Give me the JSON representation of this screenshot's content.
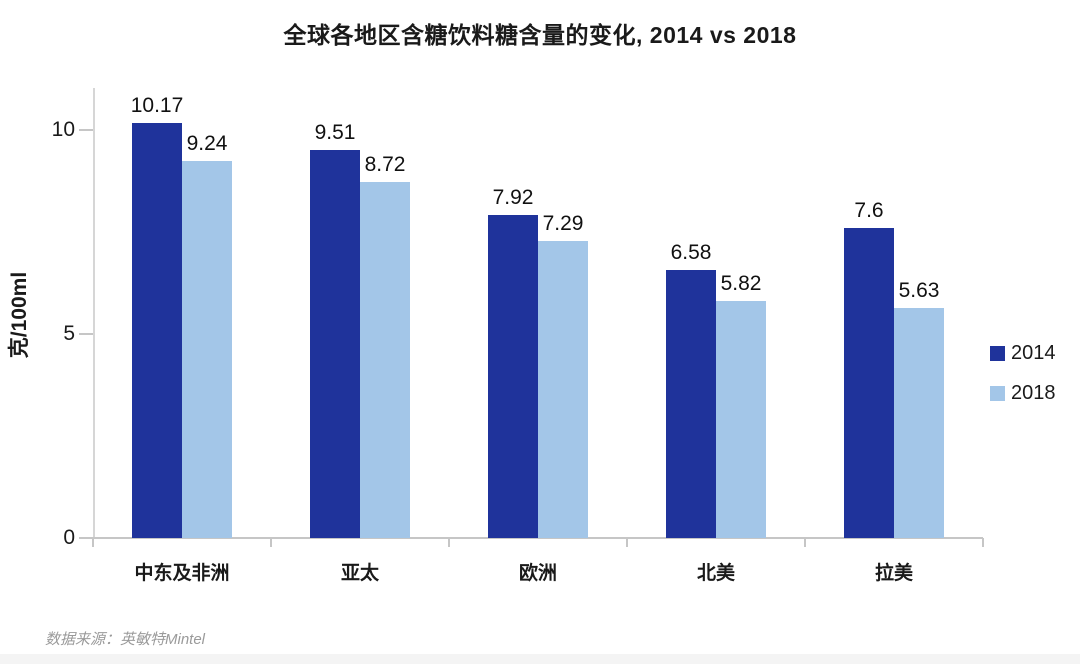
{
  "source_note": "数据来源：英敏特Mintel",
  "chart_data": {
    "type": "bar",
    "title": "全球各地区含糖饮料糖含量的变化, 2014 vs 2018",
    "xlabel": "",
    "ylabel": "克/100ml",
    "categories": [
      "中东及非洲",
      "亚太",
      "欧洲",
      "北美",
      "拉美"
    ],
    "series": [
      {
        "name": "2014",
        "color": "#1f339b",
        "values": [
          10.17,
          9.51,
          7.92,
          6.58,
          7.6
        ],
        "labels": [
          "10.17",
          "9.51",
          "7.92",
          "6.58",
          "7.6"
        ]
      },
      {
        "name": "2018",
        "color": "#a3c6e8",
        "values": [
          9.24,
          8.72,
          7.29,
          5.82,
          5.63
        ],
        "labels": [
          "9.24",
          "8.72",
          "7.29",
          "5.82",
          "5.63"
        ]
      }
    ],
    "ylim": [
      0,
      10
    ],
    "y_ticks": [
      0,
      5,
      10
    ],
    "grid": false,
    "legend_position": "right",
    "axis_color": "#c6c6c6"
  }
}
